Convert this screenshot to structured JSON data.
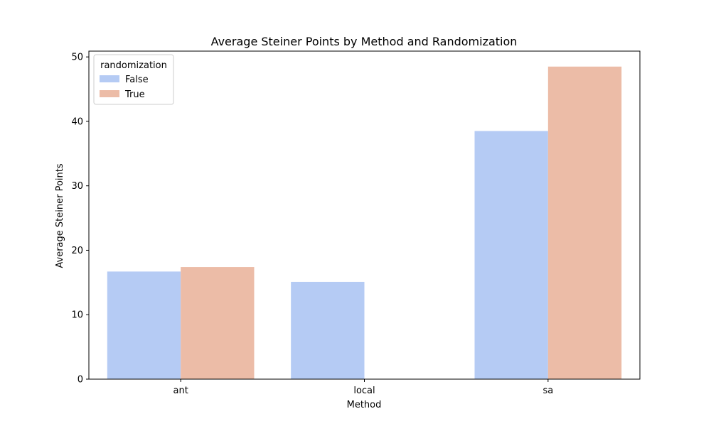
{
  "chart_data": {
    "type": "bar",
    "title": "Average Steiner Points by Method and Randomization",
    "xlabel": "Method",
    "ylabel": "Average Steiner Points",
    "categories": [
      "ant",
      "local",
      "sa"
    ],
    "series": [
      {
        "name": "False",
        "values": [
          16.7,
          15.1,
          38.5
        ],
        "color": "#b5cbf4"
      },
      {
        "name": "True",
        "values": [
          17.4,
          null,
          48.5
        ],
        "color": "#ecbca7"
      }
    ],
    "ylim": [
      0,
      50.9
    ],
    "yticks": [
      "0",
      "10",
      "20",
      "30",
      "40",
      "50"
    ],
    "grid": false,
    "legend": {
      "title": "randomization",
      "placement": "top-left"
    }
  }
}
